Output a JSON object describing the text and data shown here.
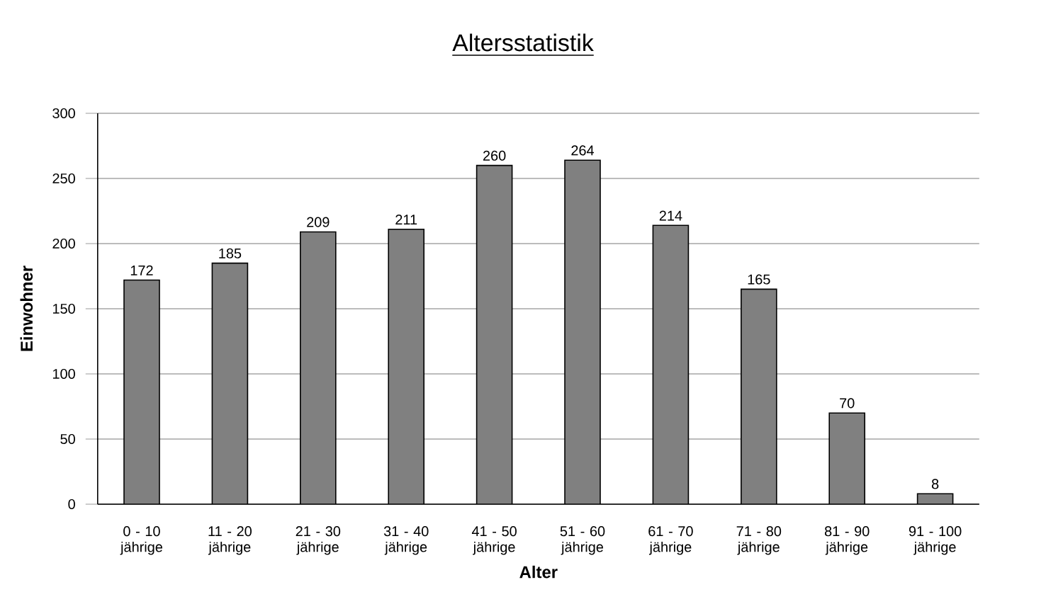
{
  "chart_data": {
    "type": "bar",
    "title": "Altersstatistik",
    "xlabel": "Alter",
    "ylabel": "Einwohner",
    "categories": [
      "0 - 10 jährige",
      "11 - 20 jährige",
      "21 - 30 jährige",
      "31 - 40 jährige",
      "41 - 50 jährige",
      "51 - 60 jährige",
      "61 - 70 jährige",
      "71 - 80 jährige",
      "81 - 90 jährige",
      "91 - 100 jährige"
    ],
    "values": [
      172,
      185,
      209,
      211,
      260,
      264,
      214,
      165,
      70,
      8
    ],
    "color": "#808080",
    "ylim": [
      0,
      300
    ],
    "yticks": [
      0,
      50,
      100,
      150,
      200,
      250,
      300
    ],
    "grid": "y",
    "data_labels": true
  }
}
